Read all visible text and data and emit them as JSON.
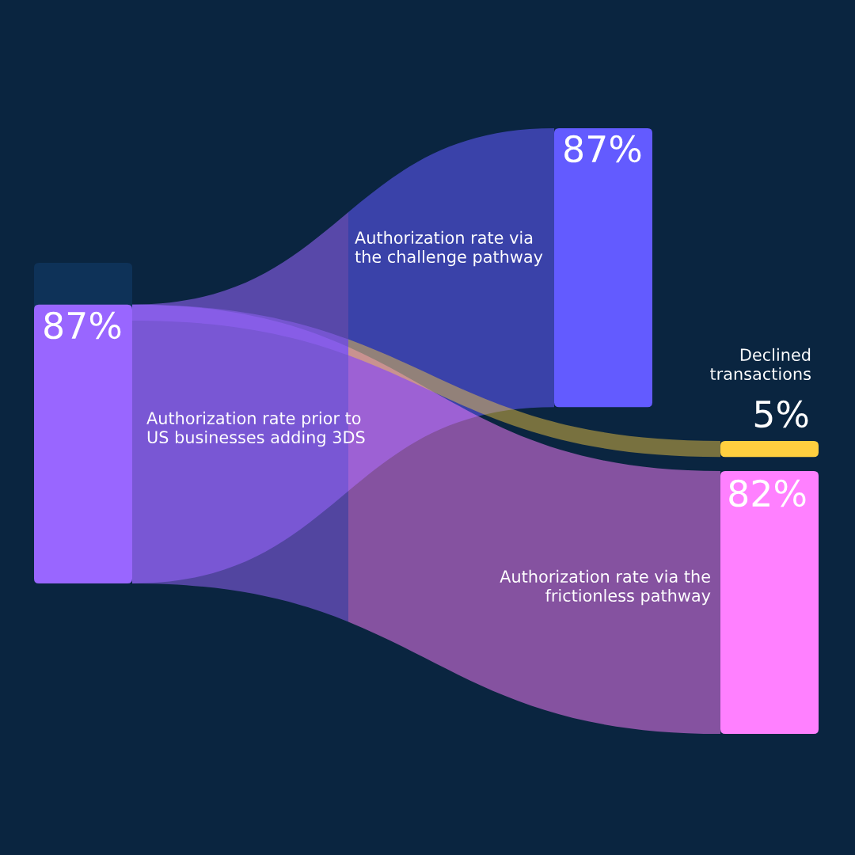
{
  "chart_data": {
    "type": "other",
    "categories": [
      "Authorization rate prior to\nUS businesses adding 3DS",
      "Authorization rate via\nthe challenge pathway",
      "Declined\ntransactions",
      "Authorization rate via the\nfrictionless pathway"
    ],
    "values": [
      87,
      87,
      5,
      82
    ],
    "value_labels": [
      "87%",
      "87%",
      "5%",
      "82%"
    ],
    "colors": [
      "#9966ff",
      "#635bff",
      "#ffcf3f",
      "#ff80ff"
    ]
  }
}
